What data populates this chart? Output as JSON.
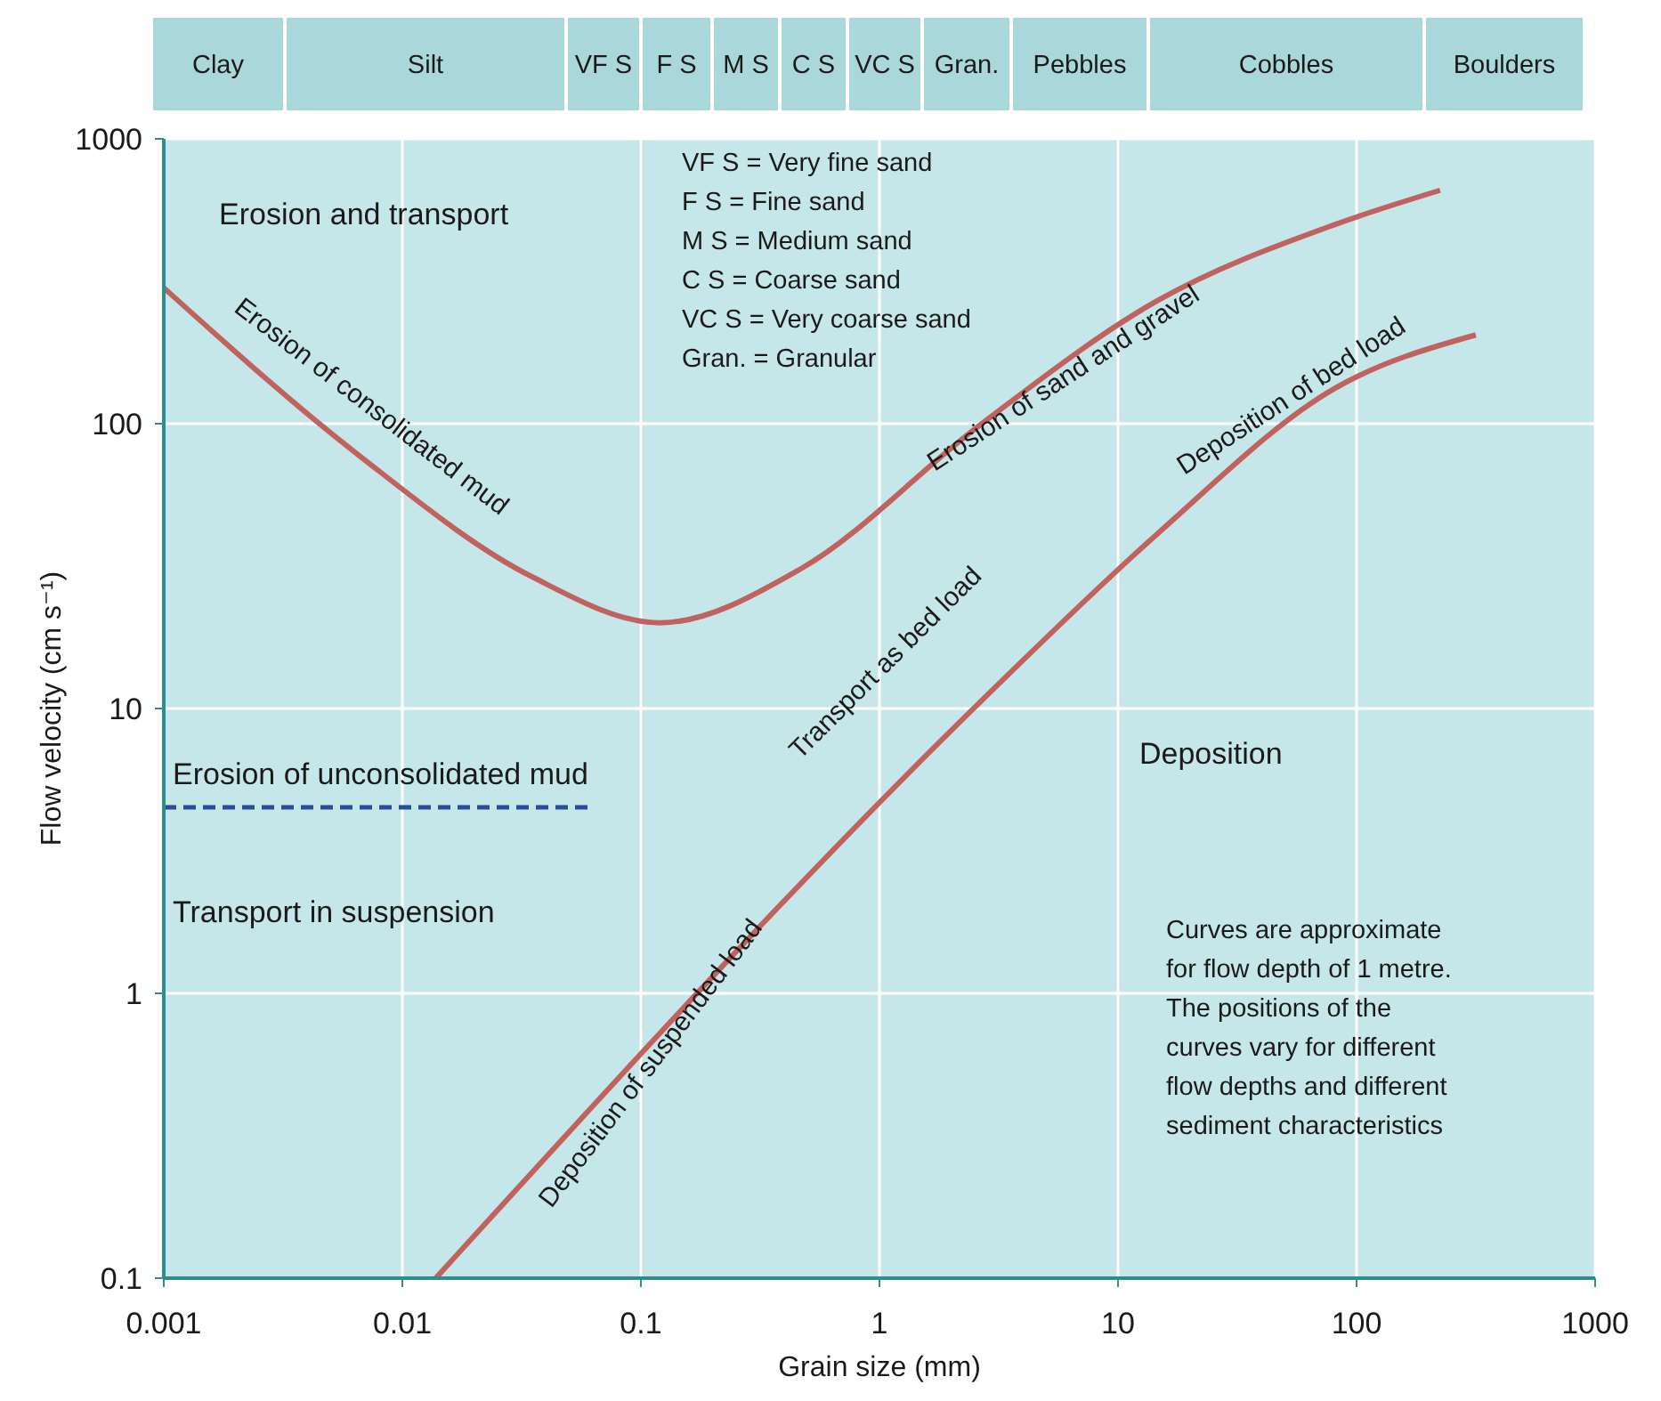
{
  "chart_data": {
    "type": "line",
    "xlabel": "Grain size (mm)",
    "ylabel": "Flow velocity (cm s⁻¹)",
    "log": "xy",
    "grid": true,
    "xlim": [
      0.001,
      1000
    ],
    "xticks": [
      0.001,
      0.01,
      0.1,
      1,
      10,
      100,
      1000
    ],
    "ylim": [
      0.1,
      1000
    ],
    "yticks": [
      0.1,
      1,
      10,
      100,
      1000
    ],
    "series": [
      {
        "color": "#c0625f",
        "x": [
          0.001,
          0.0065,
          0.035,
          0.12,
          0.47,
          2.6,
          14.6,
          81,
          224
        ],
        "values": [
          300,
          78,
          29,
          20,
          31,
          98,
          270,
          500,
          660
        ]
      },
      {
        "color": "#c0625f",
        "x": [
          0.0138,
          2.6,
          14.6,
          81,
          316
        ],
        "values": [
          0.1,
          10.4,
          41,
          133,
          205
        ]
      },
      {
        "name": "Erosion of unconsolidated mud",
        "color": "#2a4d9b",
        "line_style": "dashed",
        "x": [
          0.001,
          0.06
        ],
        "values": [
          4.5,
          4.5
        ]
      }
    ],
    "annotations": [
      "Erosion and transport",
      "VF S = Very fine sand",
      "F S = Fine sand",
      "M S = Medium sand",
      "C S = Coarse sand",
      "VC S = Very coarse sand",
      "Gran. = Granular",
      "Transport in suspension",
      "Deposition",
      "Curves are approximate",
      "for flow depth of 1 metre.",
      "The positions of the",
      "curves vary for different",
      "flow depths and different",
      "sediment characteristics",
      "Erosion of consolidated mud",
      "Erosion of sand and gravel",
      "Deposition of bed load",
      "Transport as bed load",
      "Deposition of suspended load",
      "Clay",
      "Silt",
      "VF S",
      "F S",
      "M S",
      "C S",
      "VC S",
      "Gran.",
      "Pebbles",
      "Cobbles",
      "Boulders"
    ]
  }
}
